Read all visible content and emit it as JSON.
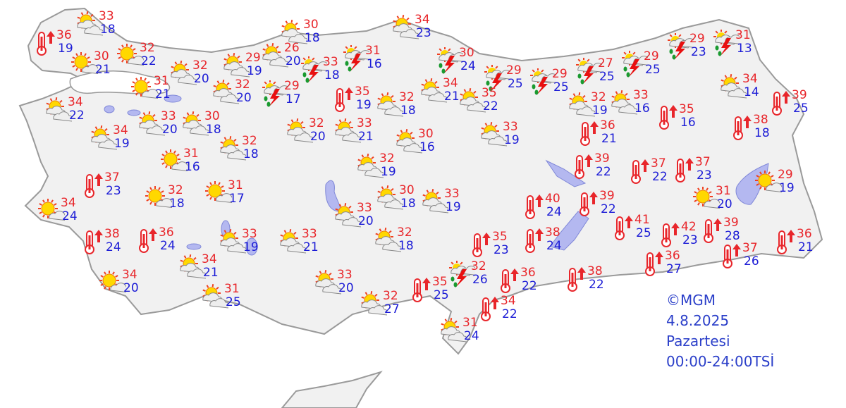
{
  "colors": {
    "high": "#e8262b",
    "low": "#1c1cd6",
    "land": "#f1f1f1",
    "border": "#9a9a9a",
    "lake": "#b4b8f0",
    "caption": "#2b3fc9"
  },
  "caption": {
    "copyright": "©MGM",
    "date": "4.8.2025",
    "day": "Pazartesi",
    "period": "00:00-24:00TSİ"
  },
  "forecasts": [
    {
      "icon": "hot",
      "high": "36",
      "low": "19"
    },
    {
      "icon": "partly-cloudy",
      "high": "33",
      "low": "18"
    },
    {
      "icon": "sunny",
      "high": "30",
      "low": "21"
    },
    {
      "icon": "sunny",
      "high": "32",
      "low": "22"
    },
    {
      "icon": "partly-cloudy",
      "high": "32",
      "low": "20"
    },
    {
      "icon": "sunny",
      "high": "31",
      "low": "21"
    },
    {
      "icon": "partly-cloudy",
      "high": "29",
      "low": "19"
    },
    {
      "icon": "partly-cloudy",
      "high": "26",
      "low": "20"
    },
    {
      "icon": "thunderstorm",
      "high": "33",
      "low": "18"
    },
    {
      "icon": "partly-cloudy",
      "high": "30",
      "low": "18"
    },
    {
      "icon": "thunderstorm",
      "high": "31",
      "low": "16"
    },
    {
      "icon": "partly-cloudy",
      "high": "34",
      "low": "23"
    },
    {
      "icon": "thunderstorm",
      "high": "30",
      "low": "24"
    },
    {
      "icon": "thunderstorm",
      "high": "29",
      "low": "25"
    },
    {
      "icon": "thunderstorm",
      "high": "29",
      "low": "25"
    },
    {
      "icon": "thunderstorm",
      "high": "27",
      "low": "25"
    },
    {
      "icon": "thunderstorm",
      "high": "29",
      "low": "25"
    },
    {
      "icon": "thunderstorm",
      "high": "29",
      "low": "23"
    },
    {
      "icon": "thunderstorm",
      "high": "31",
      "low": "13"
    },
    {
      "icon": "partly-cloudy",
      "high": "34",
      "low": "14"
    },
    {
      "icon": "hot",
      "high": "39",
      "low": "25"
    },
    {
      "icon": "partly-cloudy",
      "high": "34",
      "low": "22"
    },
    {
      "icon": "partly-cloudy",
      "high": "34",
      "low": "19"
    },
    {
      "icon": "partly-cloudy",
      "high": "33",
      "low": "20"
    },
    {
      "icon": "partly-cloudy",
      "high": "30",
      "low": "18"
    },
    {
      "icon": "partly-cloudy",
      "high": "32",
      "low": "20"
    },
    {
      "icon": "thunderstorm",
      "high": "29",
      "low": "17"
    },
    {
      "icon": "hot",
      "high": "35",
      "low": "19"
    },
    {
      "icon": "partly-cloudy",
      "high": "32",
      "low": "18"
    },
    {
      "icon": "partly-cloudy",
      "high": "34",
      "low": "21"
    },
    {
      "icon": "partly-cloudy",
      "high": "35",
      "low": "22"
    },
    {
      "icon": "partly-cloudy",
      "high": "32",
      "low": "20"
    },
    {
      "icon": "partly-cloudy",
      "high": "33",
      "low": "21"
    },
    {
      "icon": "partly-cloudy",
      "high": "30",
      "low": "16"
    },
    {
      "icon": "partly-cloudy",
      "high": "33",
      "low": "19"
    },
    {
      "icon": "partly-cloudy",
      "high": "32",
      "low": "19"
    },
    {
      "icon": "partly-cloudy",
      "high": "33",
      "low": "16"
    },
    {
      "icon": "hot",
      "high": "35",
      "low": "16"
    },
    {
      "icon": "hot",
      "high": "38",
      "low": "18"
    },
    {
      "icon": "hot",
      "high": "36",
      "low": "21"
    },
    {
      "icon": "partly-cloudy",
      "high": "32",
      "low": "18"
    },
    {
      "icon": "sunny",
      "high": "31",
      "low": "16"
    },
    {
      "icon": "partly-cloudy",
      "high": "32",
      "low": "19"
    },
    {
      "icon": "hot",
      "high": "39",
      "low": "22"
    },
    {
      "icon": "hot",
      "high": "37",
      "low": "22"
    },
    {
      "icon": "hot",
      "high": "37",
      "low": "23"
    },
    {
      "icon": "sunny",
      "high": "29",
      "low": "19"
    },
    {
      "icon": "hot",
      "high": "37",
      "low": "23"
    },
    {
      "icon": "sunny",
      "high": "32",
      "low": "18"
    },
    {
      "icon": "sunny",
      "high": "31",
      "low": "17"
    },
    {
      "icon": "partly-cloudy",
      "high": "30",
      "low": "18"
    },
    {
      "icon": "partly-cloudy",
      "high": "33",
      "low": "19"
    },
    {
      "icon": "sunny",
      "high": "34",
      "low": "24"
    },
    {
      "icon": "partly-cloudy",
      "high": "33",
      "low": "20"
    },
    {
      "icon": "hot",
      "high": "40",
      "low": "24"
    },
    {
      "icon": "hot",
      "high": "39",
      "low": "22"
    },
    {
      "icon": "sunny",
      "high": "31",
      "low": "20"
    },
    {
      "icon": "hot",
      "high": "38",
      "low": "24"
    },
    {
      "icon": "hot",
      "high": "36",
      "low": "24"
    },
    {
      "icon": "partly-cloudy",
      "high": "33",
      "low": "19"
    },
    {
      "icon": "partly-cloudy",
      "high": "33",
      "low": "21"
    },
    {
      "icon": "partly-cloudy",
      "high": "32",
      "low": "18"
    },
    {
      "icon": "hot",
      "high": "35",
      "low": "23"
    },
    {
      "icon": "hot",
      "high": "38",
      "low": "24"
    },
    {
      "icon": "hot",
      "high": "41",
      "low": "25"
    },
    {
      "icon": "hot",
      "high": "42",
      "low": "23"
    },
    {
      "icon": "hot",
      "high": "39",
      "low": "28"
    },
    {
      "icon": "hot",
      "high": "36",
      "low": "21"
    },
    {
      "icon": "partly-cloudy",
      "high": "34",
      "low": "21"
    },
    {
      "icon": "sunny",
      "high": "34",
      "low": "20"
    },
    {
      "icon": "partly-cloudy",
      "high": "31",
      "low": "25"
    },
    {
      "icon": "partly-cloudy",
      "high": "33",
      "low": "20"
    },
    {
      "icon": "thunderstorm",
      "high": "32",
      "low": "26"
    },
    {
      "icon": "hot",
      "high": "35",
      "low": "25"
    },
    {
      "icon": "hot",
      "high": "36",
      "low": "22"
    },
    {
      "icon": "hot",
      "high": "38",
      "low": "22"
    },
    {
      "icon": "hot",
      "high": "36",
      "low": "27"
    },
    {
      "icon": "hot",
      "high": "37",
      "low": "26"
    },
    {
      "icon": "partly-cloudy",
      "high": "32",
      "low": "27"
    },
    {
      "icon": "hot",
      "high": "34",
      "low": "22"
    },
    {
      "icon": "partly-cloudy",
      "high": "31",
      "low": "24"
    }
  ]
}
